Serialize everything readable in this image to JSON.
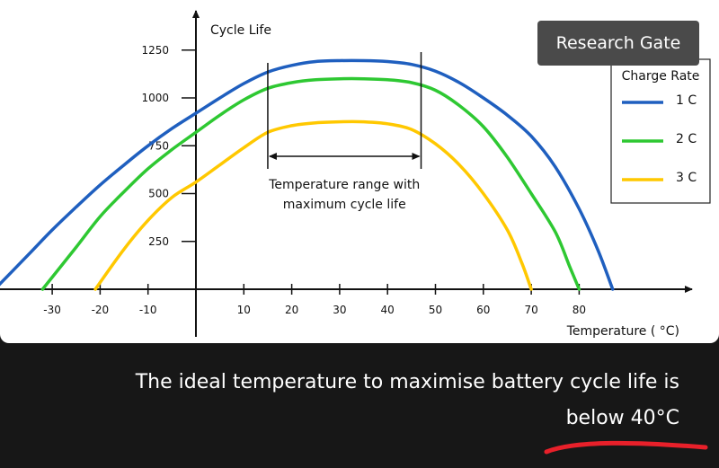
{
  "chart_data": {
    "type": "line",
    "title": "",
    "xlabel": "Temperature ( °C)",
    "ylabel": "Cycle Life",
    "xlim": [
      -40,
      100
    ],
    "ylim": [
      0,
      1400
    ],
    "x_ticks": [
      -30,
      -20,
      -10,
      10,
      20,
      30,
      40,
      50,
      60,
      70,
      80
    ],
    "y_ticks": [
      250,
      500,
      750,
      1000,
      1250
    ],
    "grid": false,
    "legend": {
      "title": "Charge Rate",
      "position": "right"
    },
    "series": [
      {
        "name": "1 C",
        "color": "#1f5fbf",
        "x": [
          -42,
          -35,
          -30,
          -25,
          -20,
          -15,
          -10,
          -5,
          0,
          5,
          10,
          15,
          20,
          25,
          30,
          35,
          40,
          45,
          50,
          55,
          60,
          65,
          70,
          75,
          80,
          84,
          87
        ],
        "y": [
          0,
          180,
          310,
          430,
          545,
          650,
          750,
          840,
          920,
          1000,
          1075,
          1135,
          1170,
          1190,
          1195,
          1195,
          1190,
          1175,
          1140,
          1080,
          1000,
          910,
          800,
          640,
          420,
          200,
          0
        ]
      },
      {
        "name": "2 C",
        "color": "#2ec832",
        "x": [
          -32,
          -25,
          -20,
          -15,
          -10,
          -5,
          0,
          5,
          10,
          15,
          20,
          25,
          30,
          35,
          40,
          45,
          50,
          55,
          60,
          65,
          70,
          75,
          78,
          80
        ],
        "y": [
          0,
          220,
          380,
          510,
          630,
          730,
          820,
          910,
          990,
          1050,
          1080,
          1095,
          1100,
          1100,
          1095,
          1080,
          1040,
          960,
          850,
          690,
          500,
          300,
          120,
          0
        ]
      },
      {
        "name": "3 C",
        "color": "#ffc800",
        "x": [
          -21,
          -15,
          -10,
          -5,
          0,
          5,
          10,
          15,
          20,
          25,
          30,
          35,
          40,
          45,
          50,
          55,
          60,
          65,
          68,
          70
        ],
        "y": [
          0,
          210,
          360,
          480,
          560,
          650,
          740,
          820,
          855,
          870,
          875,
          875,
          865,
          835,
          760,
          650,
          500,
          310,
          140,
          0
        ]
      }
    ],
    "annotations": [
      {
        "text_lines": [
          "Temperature range with",
          "maximum cycle life"
        ],
        "range_x": [
          15,
          47
        ]
      }
    ]
  },
  "watermark": {
    "text": "Research Gate"
  },
  "caption": {
    "line1": "The ideal temperature to maximise battery cycle life is",
    "line2": "below 40°C",
    "underline_color": "#e8202a"
  }
}
